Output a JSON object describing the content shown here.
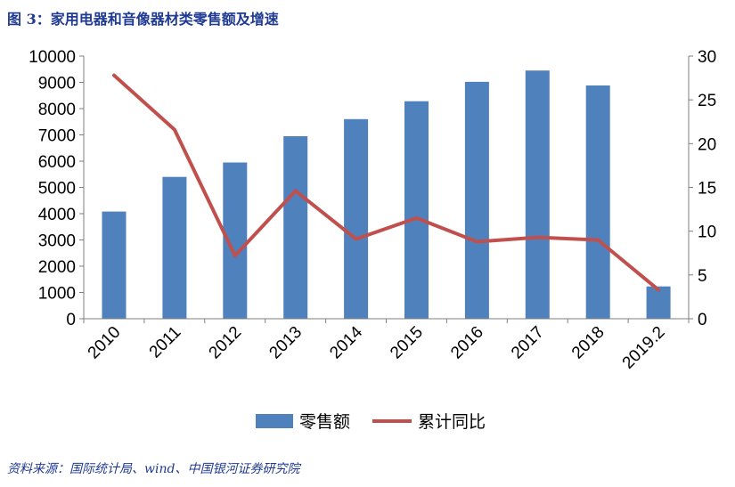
{
  "header": {
    "title": "图 3：家用电器和音像器材类零售额及增速"
  },
  "footer": {
    "source": "资料来源：国际统计局、wind、中国银河证券研究院"
  },
  "colors": {
    "bar": "#4f81bd",
    "line": "#c0504d",
    "title": "#1f3a93",
    "axis": "#7f7f7f"
  },
  "chart_data": {
    "type": "bar",
    "title": "",
    "xlabel": "",
    "ylabel": "",
    "categories": [
      "2010",
      "2011",
      "2012",
      "2013",
      "2014",
      "2015",
      "2016",
      "2017",
      "2018",
      "2019.2"
    ],
    "series": [
      {
        "name": "零售额",
        "type": "bar",
        "axis": "left",
        "values": [
          4080,
          5400,
          5950,
          6950,
          7600,
          8280,
          9020,
          9450,
          8880,
          1230
        ]
      },
      {
        "name": "累计同比",
        "type": "line",
        "axis": "right",
        "values": [
          27.8,
          21.6,
          7.2,
          14.6,
          9.1,
          11.5,
          8.8,
          9.3,
          9.0,
          3.3
        ]
      }
    ],
    "ylim": [
      0,
      10000
    ],
    "yticks": [
      "0",
      "1000",
      "2000",
      "3000",
      "4000",
      "5000",
      "6000",
      "7000",
      "8000",
      "9000",
      "10000"
    ],
    "y2lim": [
      0,
      30
    ],
    "y2ticks": [
      "0",
      "5",
      "10",
      "15",
      "20",
      "25",
      "30"
    ],
    "grid": false,
    "legend_position": "bottom"
  }
}
